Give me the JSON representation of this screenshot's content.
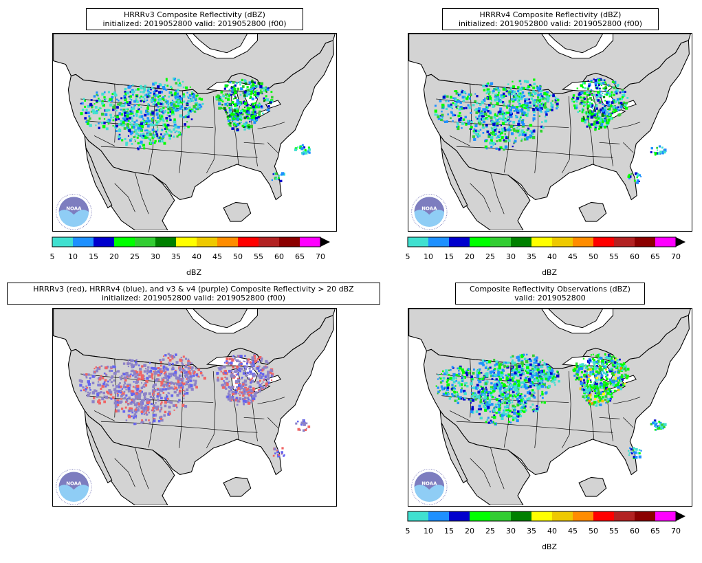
{
  "panels": [
    {
      "title": "HRRRv3 Composite Reflectivity (dBZ)",
      "subtitle": "initialized: 2019052800 valid: 2019052800 (f00)",
      "logo": "noaa-logo",
      "logo_text": "NOAA"
    },
    {
      "title": "HRRRv4 Composite Reflectivity (dBZ)",
      "subtitle": "initialized: 2019052800 valid: 2019052800 (f00)",
      "logo": "noaa-logo",
      "logo_text": "NOAA"
    },
    {
      "title": "HRRRv3 (red), HRRRv4 (blue), and v3 & v4 (purple) Composite Reflectivity > 20 dBZ",
      "subtitle": "initialized: 2019052800 valid: 2019052800 (f00)",
      "logo": "noaa-logo",
      "logo_text": "NOAA"
    },
    {
      "title": "Composite Reflectivity Observations (dBZ)",
      "subtitle": "valid: 2019052800",
      "logo": "noaa-logo",
      "logo_text": "NOAA"
    }
  ],
  "colorbar": {
    "unit": "dBZ",
    "ticks": [
      "5",
      "10",
      "15",
      "20",
      "25",
      "30",
      "35",
      "40",
      "45",
      "50",
      "55",
      "60",
      "65",
      "70"
    ],
    "colors": [
      "#40e0d0",
      "#1e90ff",
      "#0000cd",
      "#00ff00",
      "#32cd32",
      "#008000",
      "#ffff00",
      "#eec900",
      "#ff8c00",
      "#ff0000",
      "#b22222",
      "#8b0000",
      "#ff00ff"
    ],
    "extend": "max"
  },
  "colors": {
    "land": "#d3d3d3",
    "water": "#ffffff",
    "v3_only": "#f06464",
    "v4_only": "#6464f0",
    "both": "#8c82c8"
  }
}
